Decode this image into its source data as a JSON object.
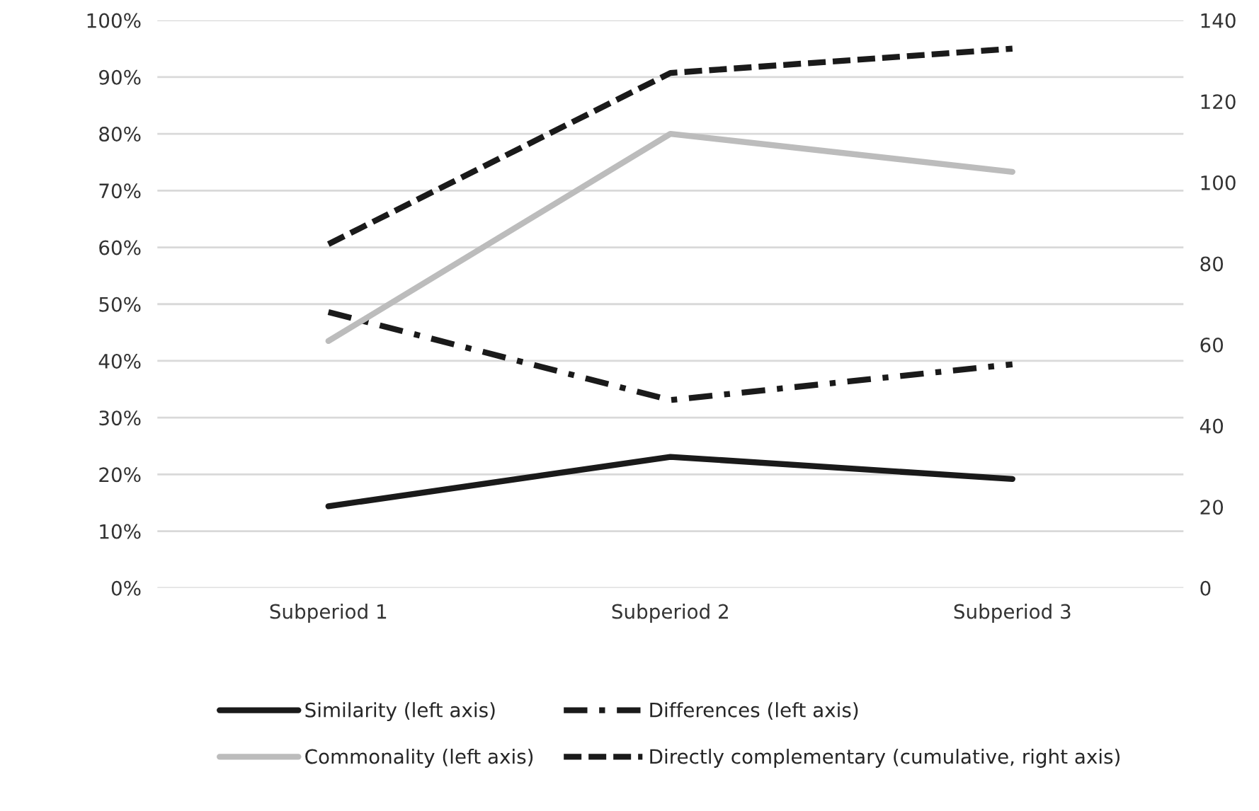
{
  "chart_data": {
    "type": "line",
    "categories": [
      "Subperiod 1",
      "Subperiod 2",
      "Subperiod 3"
    ],
    "series": [
      {
        "name": "Similarity (left axis)",
        "color": "#1a1a1a",
        "line_style": "solid",
        "values": [
          14.4,
          23.1,
          19.2
        ]
      },
      {
        "name": "Differences (left axis)",
        "color": "#1a1a1a",
        "line_style": "dashdot",
        "values": [
          48.6,
          33.1,
          39.4
        ]
      },
      {
        "name": "Commonality (left axis)",
        "color": "#bcbcbc",
        "line_style": "solid",
        "values": [
          43.5,
          80.0,
          73.3
        ]
      },
      {
        "name": "Directly complementary (cumulative, right axis)",
        "color": "#1a1a1a",
        "line_style": "dashed",
        "axis": "y2",
        "values": [
          84.8,
          127,
          133
        ]
      }
    ],
    "ylim": [
      0,
      100
    ],
    "yticks": [
      {
        "value": 0,
        "label": "0%"
      },
      {
        "value": 10,
        "label": "10%"
      },
      {
        "value": 20,
        "label": "20%"
      },
      {
        "value": 30,
        "label": "30%"
      },
      {
        "value": 40,
        "label": "40%"
      },
      {
        "value": 50,
        "label": "50%"
      },
      {
        "value": 60,
        "label": "60%"
      },
      {
        "value": 70,
        "label": "70%"
      },
      {
        "value": 80,
        "label": "80%"
      },
      {
        "value": 90,
        "label": "90%"
      },
      {
        "value": 100,
        "label": "100%"
      }
    ],
    "y2lim": [
      0,
      140
    ],
    "y2ticks": [
      0,
      20,
      40,
      60,
      80,
      100,
      120,
      140
    ],
    "grid": "y",
    "legend": "bottom",
    "marker": "none"
  }
}
